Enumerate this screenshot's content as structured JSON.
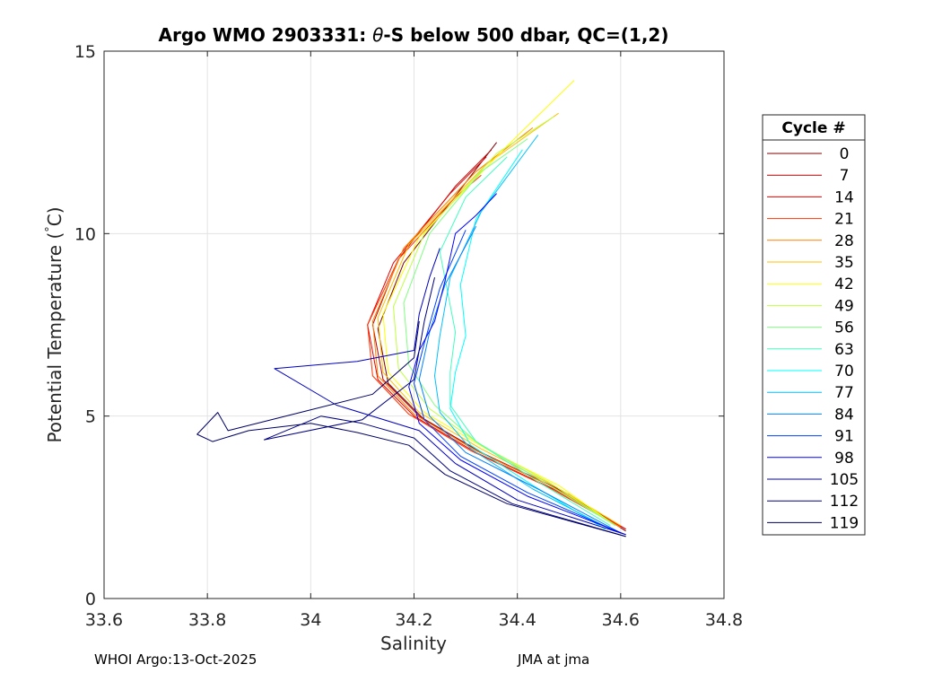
{
  "chart_data": {
    "type": "line",
    "title_prefix": "Argo WMO 2903331: ",
    "title_theta": "θ",
    "title_suffix": "-S below 500 dbar,  QC=(1,2)",
    "xlabel": "Salinity",
    "ylabel_main": "Potential Temperature (",
    "ylabel_deg": "°",
    "ylabel_unit": "C)",
    "xlim": [
      33.6,
      34.8
    ],
    "ylim": [
      0,
      15
    ],
    "xticks": [
      33.6,
      33.8,
      34,
      34.2,
      34.4,
      34.6,
      34.8
    ],
    "xtick_labels": [
      "33.6",
      "33.8",
      "34",
      "34.2",
      "34.4",
      "34.6",
      "34.8"
    ],
    "yticks": [
      0,
      5,
      10,
      15
    ],
    "ytick_labels": [
      "0",
      "5",
      "10",
      "15"
    ],
    "grid": true,
    "legend_title": "Cycle #",
    "legend_position": "right-outside",
    "series": [
      {
        "name": "0",
        "color": "#800000",
        "x": [
          34.61,
          34.5,
          34.35,
          34.22,
          34.15,
          34.13,
          34.18,
          34.3,
          34.36
        ],
        "y": [
          1.85,
          2.85,
          3.85,
          4.9,
          5.9,
          7.4,
          9.2,
          11.4,
          12.5
        ]
      },
      {
        "name": "7",
        "color": "#b30000",
        "x": [
          34.61,
          34.48,
          34.33,
          34.21,
          34.14,
          34.12,
          34.17,
          34.28,
          34.35
        ],
        "y": [
          1.9,
          3.0,
          4.0,
          5.0,
          6.0,
          7.5,
          9.3,
          11.3,
          12.3
        ]
      },
      {
        "name": "14",
        "color": "#e60000",
        "x": [
          34.61,
          34.47,
          34.32,
          34.2,
          34.13,
          34.11,
          34.16,
          34.27,
          34.34
        ],
        "y": [
          1.9,
          3.0,
          4.0,
          5.0,
          6.0,
          7.5,
          9.2,
          11.1,
          12.1
        ]
      },
      {
        "name": "21",
        "color": "#ff3300",
        "x": [
          34.6,
          34.46,
          34.31,
          34.19,
          34.12,
          34.11,
          34.17,
          34.28,
          34.33
        ],
        "y": [
          1.95,
          3.05,
          4.05,
          5.05,
          6.1,
          7.5,
          9.3,
          11.0,
          11.6
        ]
      },
      {
        "name": "28",
        "color": "#ff8000",
        "x": [
          34.6,
          34.47,
          34.32,
          34.2,
          34.13,
          34.12,
          34.18,
          34.32,
          34.43
        ],
        "y": [
          1.95,
          3.05,
          4.05,
          5.05,
          6.1,
          7.6,
          9.6,
          11.7,
          12.9
        ]
      },
      {
        "name": "35",
        "color": "#ffbf00",
        "x": [
          34.6,
          34.47,
          34.33,
          34.21,
          34.14,
          34.13,
          34.19,
          34.34,
          34.48
        ],
        "y": [
          2.0,
          3.1,
          4.1,
          5.1,
          6.2,
          7.7,
          9.7,
          11.9,
          13.3
        ]
      },
      {
        "name": "42",
        "color": "#ffff00",
        "x": [
          34.59,
          34.48,
          34.34,
          34.22,
          34.15,
          34.14,
          34.21,
          34.38,
          34.51
        ],
        "y": [
          2.0,
          3.1,
          4.1,
          5.1,
          6.2,
          7.8,
          9.9,
          12.4,
          14.2
        ]
      },
      {
        "name": "49",
        "color": "#bfff40",
        "x": [
          34.59,
          34.46,
          34.33,
          34.23,
          34.17,
          34.16,
          34.22,
          34.36,
          34.47
        ],
        "y": [
          2.0,
          3.2,
          4.2,
          5.2,
          6.3,
          8.0,
          10.0,
          12.2,
          13.2
        ]
      },
      {
        "name": "56",
        "color": "#80ff80",
        "x": [
          34.59,
          34.45,
          34.32,
          34.24,
          34.19,
          34.18,
          34.23,
          34.33,
          34.42
        ],
        "y": [
          2.0,
          3.2,
          4.3,
          5.3,
          6.4,
          8.1,
          10.0,
          11.7,
          12.6
        ]
      },
      {
        "name": "63",
        "color": "#40ffbf",
        "x": [
          34.58,
          34.44,
          34.32,
          34.27,
          34.27,
          34.28,
          34.25,
          34.3,
          34.38
        ],
        "y": [
          2.0,
          3.2,
          4.3,
          5.3,
          6.2,
          7.3,
          9.5,
          11.0,
          12.1
        ]
      },
      {
        "name": "70",
        "color": "#00ffff",
        "x": [
          34.57,
          34.43,
          34.31,
          34.27,
          34.28,
          34.3,
          34.29,
          34.32,
          34.41
        ],
        "y": [
          1.9,
          3.1,
          4.2,
          5.2,
          6.2,
          7.2,
          8.6,
          10.4,
          12.3
        ]
      },
      {
        "name": "77",
        "color": "#00bfff",
        "x": [
          34.58,
          34.43,
          34.31,
          34.25,
          34.24,
          34.25,
          34.27,
          34.33,
          34.44
        ],
        "y": [
          1.9,
          3.0,
          4.1,
          5.1,
          6.1,
          7.2,
          8.8,
          10.6,
          12.7
        ]
      },
      {
        "name": "84",
        "color": "#0080ff",
        "x": [
          34.6,
          34.44,
          34.3,
          34.23,
          34.21,
          34.23,
          34.26,
          34.32
        ],
        "y": [
          1.8,
          3.0,
          4.0,
          5.0,
          6.0,
          7.3,
          8.6,
          10.2
        ]
      },
      {
        "name": "91",
        "color": "#0040ff",
        "x": [
          34.6,
          34.42,
          34.29,
          34.22,
          34.2,
          34.22,
          34.25,
          34.3
        ],
        "y": [
          1.8,
          2.9,
          3.9,
          4.9,
          5.9,
          7.0,
          8.5,
          10.1
        ]
      },
      {
        "name": "98",
        "color": "#0000ff",
        "x": [
          34.61,
          34.42,
          34.29,
          34.21,
          34.19,
          34.21,
          34.24,
          34.26,
          34.28,
          34.32,
          34.36
        ],
        "y": [
          1.75,
          2.8,
          3.8,
          4.8,
          5.8,
          6.8,
          7.6,
          8.7,
          10.0,
          10.5,
          11.1
        ]
      },
      {
        "name": "105",
        "color": "#0000bf",
        "x": [
          34.61,
          34.4,
          34.28,
          34.21,
          34.05,
          33.93,
          34.09,
          34.2,
          34.21,
          34.23,
          34.25
        ],
        "y": [
          1.75,
          2.7,
          3.7,
          4.6,
          5.3,
          6.3,
          6.5,
          6.8,
          7.8,
          8.8,
          9.6
        ]
      },
      {
        "name": "112",
        "color": "#000080",
        "x": [
          34.61,
          34.39,
          34.27,
          34.2,
          34.1,
          34.02,
          33.91,
          34.1,
          34.2,
          34.22,
          34.24
        ],
        "y": [
          1.7,
          2.6,
          3.5,
          4.4,
          4.8,
          5.0,
          4.35,
          4.9,
          6.0,
          7.6,
          8.8
        ]
      },
      {
        "name": "119",
        "color": "#000066",
        "x": [
          34.61,
          34.38,
          34.26,
          34.19,
          34.09,
          34.0,
          33.88,
          33.81,
          33.78,
          33.82,
          33.84,
          33.98,
          34.12,
          34.2,
          34.21
        ],
        "y": [
          1.7,
          2.6,
          3.4,
          4.2,
          4.55,
          4.8,
          4.6,
          4.3,
          4.5,
          5.1,
          4.6,
          5.1,
          5.6,
          6.6,
          7.6
        ]
      }
    ]
  },
  "footer": {
    "left": "WHOI Argo:13-Oct-2025",
    "right": "JMA at jma"
  }
}
